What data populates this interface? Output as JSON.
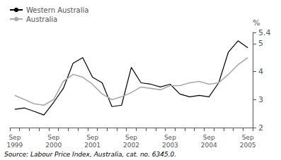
{
  "chart_data": {
    "type": "line",
    "ylabel": "%",
    "source": "Source: Labour Price Index, Australia, cat. no. 6345.0.",
    "categories": [
      "Sep\n1999",
      null,
      null,
      null,
      "Sep\n2000",
      null,
      null,
      null,
      "Sep\n2001",
      null,
      null,
      null,
      "Sep\n2002",
      null,
      null,
      null,
      "Sep\n2003",
      null,
      null,
      null,
      "Sep\n2004",
      null,
      null,
      null,
      "Sep\n2005"
    ],
    "series": [
      {
        "name": "Western Australia",
        "color": "#000000",
        "values": [
          2.65,
          2.7,
          2.58,
          2.45,
          2.9,
          3.4,
          4.3,
          4.5,
          3.8,
          3.6,
          2.75,
          2.8,
          4.15,
          3.6,
          3.55,
          3.45,
          3.55,
          3.2,
          3.1,
          3.15,
          3.1,
          3.6,
          4.7,
          5.1,
          4.85
        ]
      },
      {
        "name": "Australia",
        "color": "#aaaaaa",
        "values": [
          3.15,
          3.0,
          2.85,
          2.8,
          3.0,
          3.65,
          3.9,
          3.8,
          3.55,
          3.2,
          3.0,
          3.1,
          3.25,
          3.45,
          3.4,
          3.35,
          3.5,
          3.5,
          3.6,
          3.65,
          3.55,
          3.6,
          3.9,
          4.25,
          4.5
        ]
      }
    ],
    "ylim": [
      2,
      5.4
    ],
    "yticks": [
      2,
      3,
      4,
      5
    ],
    "grid": false,
    "legend": "upper left"
  }
}
